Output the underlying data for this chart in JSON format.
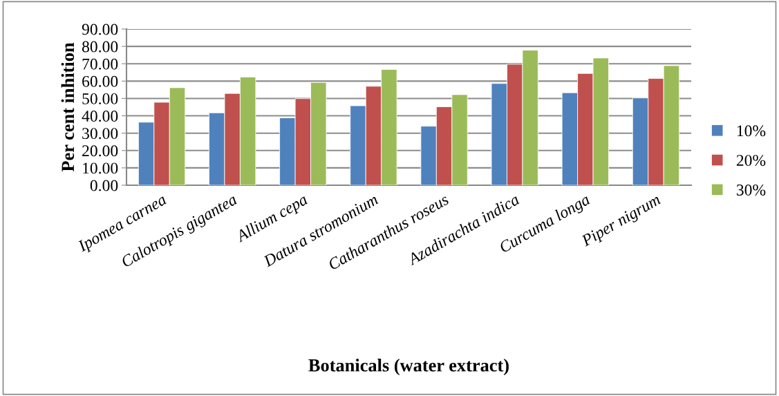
{
  "chart_data": {
    "type": "bar",
    "xlabel": "Botanicals (water extract)",
    "ylabel": "Per cent inhition",
    "categories": [
      "Ipomea carnea",
      "Calotropis gigantea",
      "Allium cepa",
      "Datura stromonium",
      "Catharanthus roseus",
      "Azadirachta indica",
      "Curcuma longa",
      "Piper nigrum"
    ],
    "series": [
      {
        "name": "10%",
        "color": "#4f81bd",
        "values": [
          36.3,
          41.7,
          38.8,
          45.8,
          34.0,
          58.6,
          53.3,
          50.3
        ]
      },
      {
        "name": "20%",
        "color": "#c0504d",
        "values": [
          47.8,
          52.9,
          49.9,
          57.0,
          45.2,
          69.7,
          64.4,
          61.5
        ]
      },
      {
        "name": "30%",
        "color": "#9bbb59",
        "values": [
          56.2,
          62.3,
          59.2,
          66.7,
          52.2,
          77.8,
          73.3,
          68.9
        ]
      }
    ],
    "ylim": [
      0,
      90
    ],
    "yticks": [
      {
        "value": 0,
        "label": "0.00"
      },
      {
        "value": 10,
        "label": "10.00"
      },
      {
        "value": 20,
        "label": "20.00"
      },
      {
        "value": 30,
        "label": "30.00"
      },
      {
        "value": 40,
        "label": "40.00"
      },
      {
        "value": 50,
        "label": "50.00"
      },
      {
        "value": 60,
        "label": "60.00"
      },
      {
        "value": 70,
        "label": "70.00"
      },
      {
        "value": 80,
        "label": "80.00"
      },
      {
        "value": 90,
        "label": "90.00"
      }
    ],
    "grid": "y",
    "legend": "right"
  }
}
